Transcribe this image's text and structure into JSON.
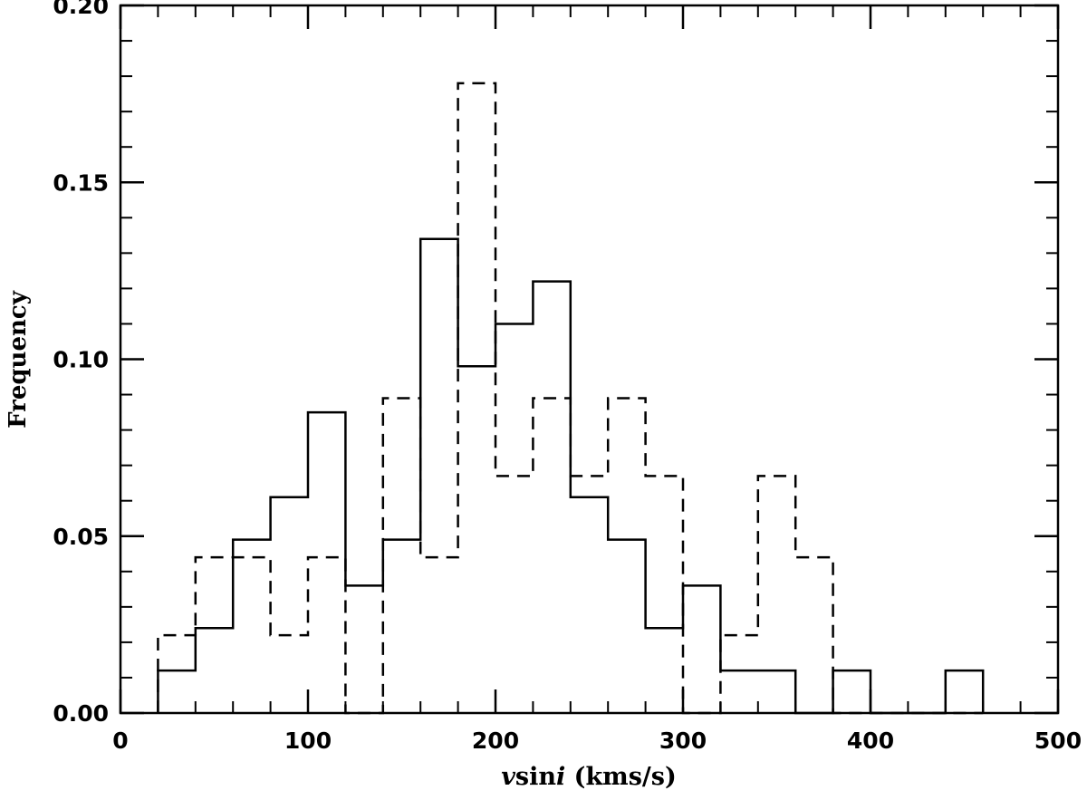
{
  "chart_data": {
    "type": "histogram",
    "bin_edges": [
      20,
      40,
      60,
      80,
      100,
      120,
      140,
      160,
      180,
      200,
      220,
      240,
      260,
      280,
      300,
      320,
      340,
      360,
      380,
      400,
      420,
      440,
      460
    ],
    "series": [
      {
        "style": "solid",
        "values": [
          0.012,
          0.024,
          0.049,
          0.061,
          0.085,
          0.036,
          0.049,
          0.134,
          0.098,
          0.11,
          0.122,
          0.061,
          0.049,
          0.024,
          0.036,
          0.012,
          0.012,
          0.0,
          0.012,
          0.0,
          0.0,
          0.012
        ]
      },
      {
        "style": "dashed",
        "values": [
          0.022,
          0.044,
          0.044,
          0.022,
          0.044,
          0.0,
          0.089,
          0.044,
          0.178,
          0.067,
          0.089,
          0.067,
          0.089,
          0.067,
          0.0,
          0.022,
          0.067,
          0.044,
          0.0,
          0.0,
          0.0,
          0.0
        ]
      }
    ],
    "xlabel": "vsini (kms/s)",
    "xlabel_parts": [
      "v",
      "sin",
      "i",
      " (kms/s)"
    ],
    "ylabel": "Frequency",
    "xlim": [
      0,
      500
    ],
    "ylim": [
      0,
      0.2
    ],
    "xticks": [
      0,
      100,
      200,
      300,
      400,
      500
    ],
    "xtick_labels": [
      "0",
      "100",
      "200",
      "300",
      "400",
      "500"
    ],
    "yticks": [
      0,
      0.05,
      0.1,
      0.15,
      0.2
    ],
    "ytick_labels": [
      "0.00",
      "0.05",
      "0.10",
      "0.15",
      "0.20"
    ],
    "xminor_step": 20,
    "yminor_step": 0.01,
    "grid": false
  }
}
